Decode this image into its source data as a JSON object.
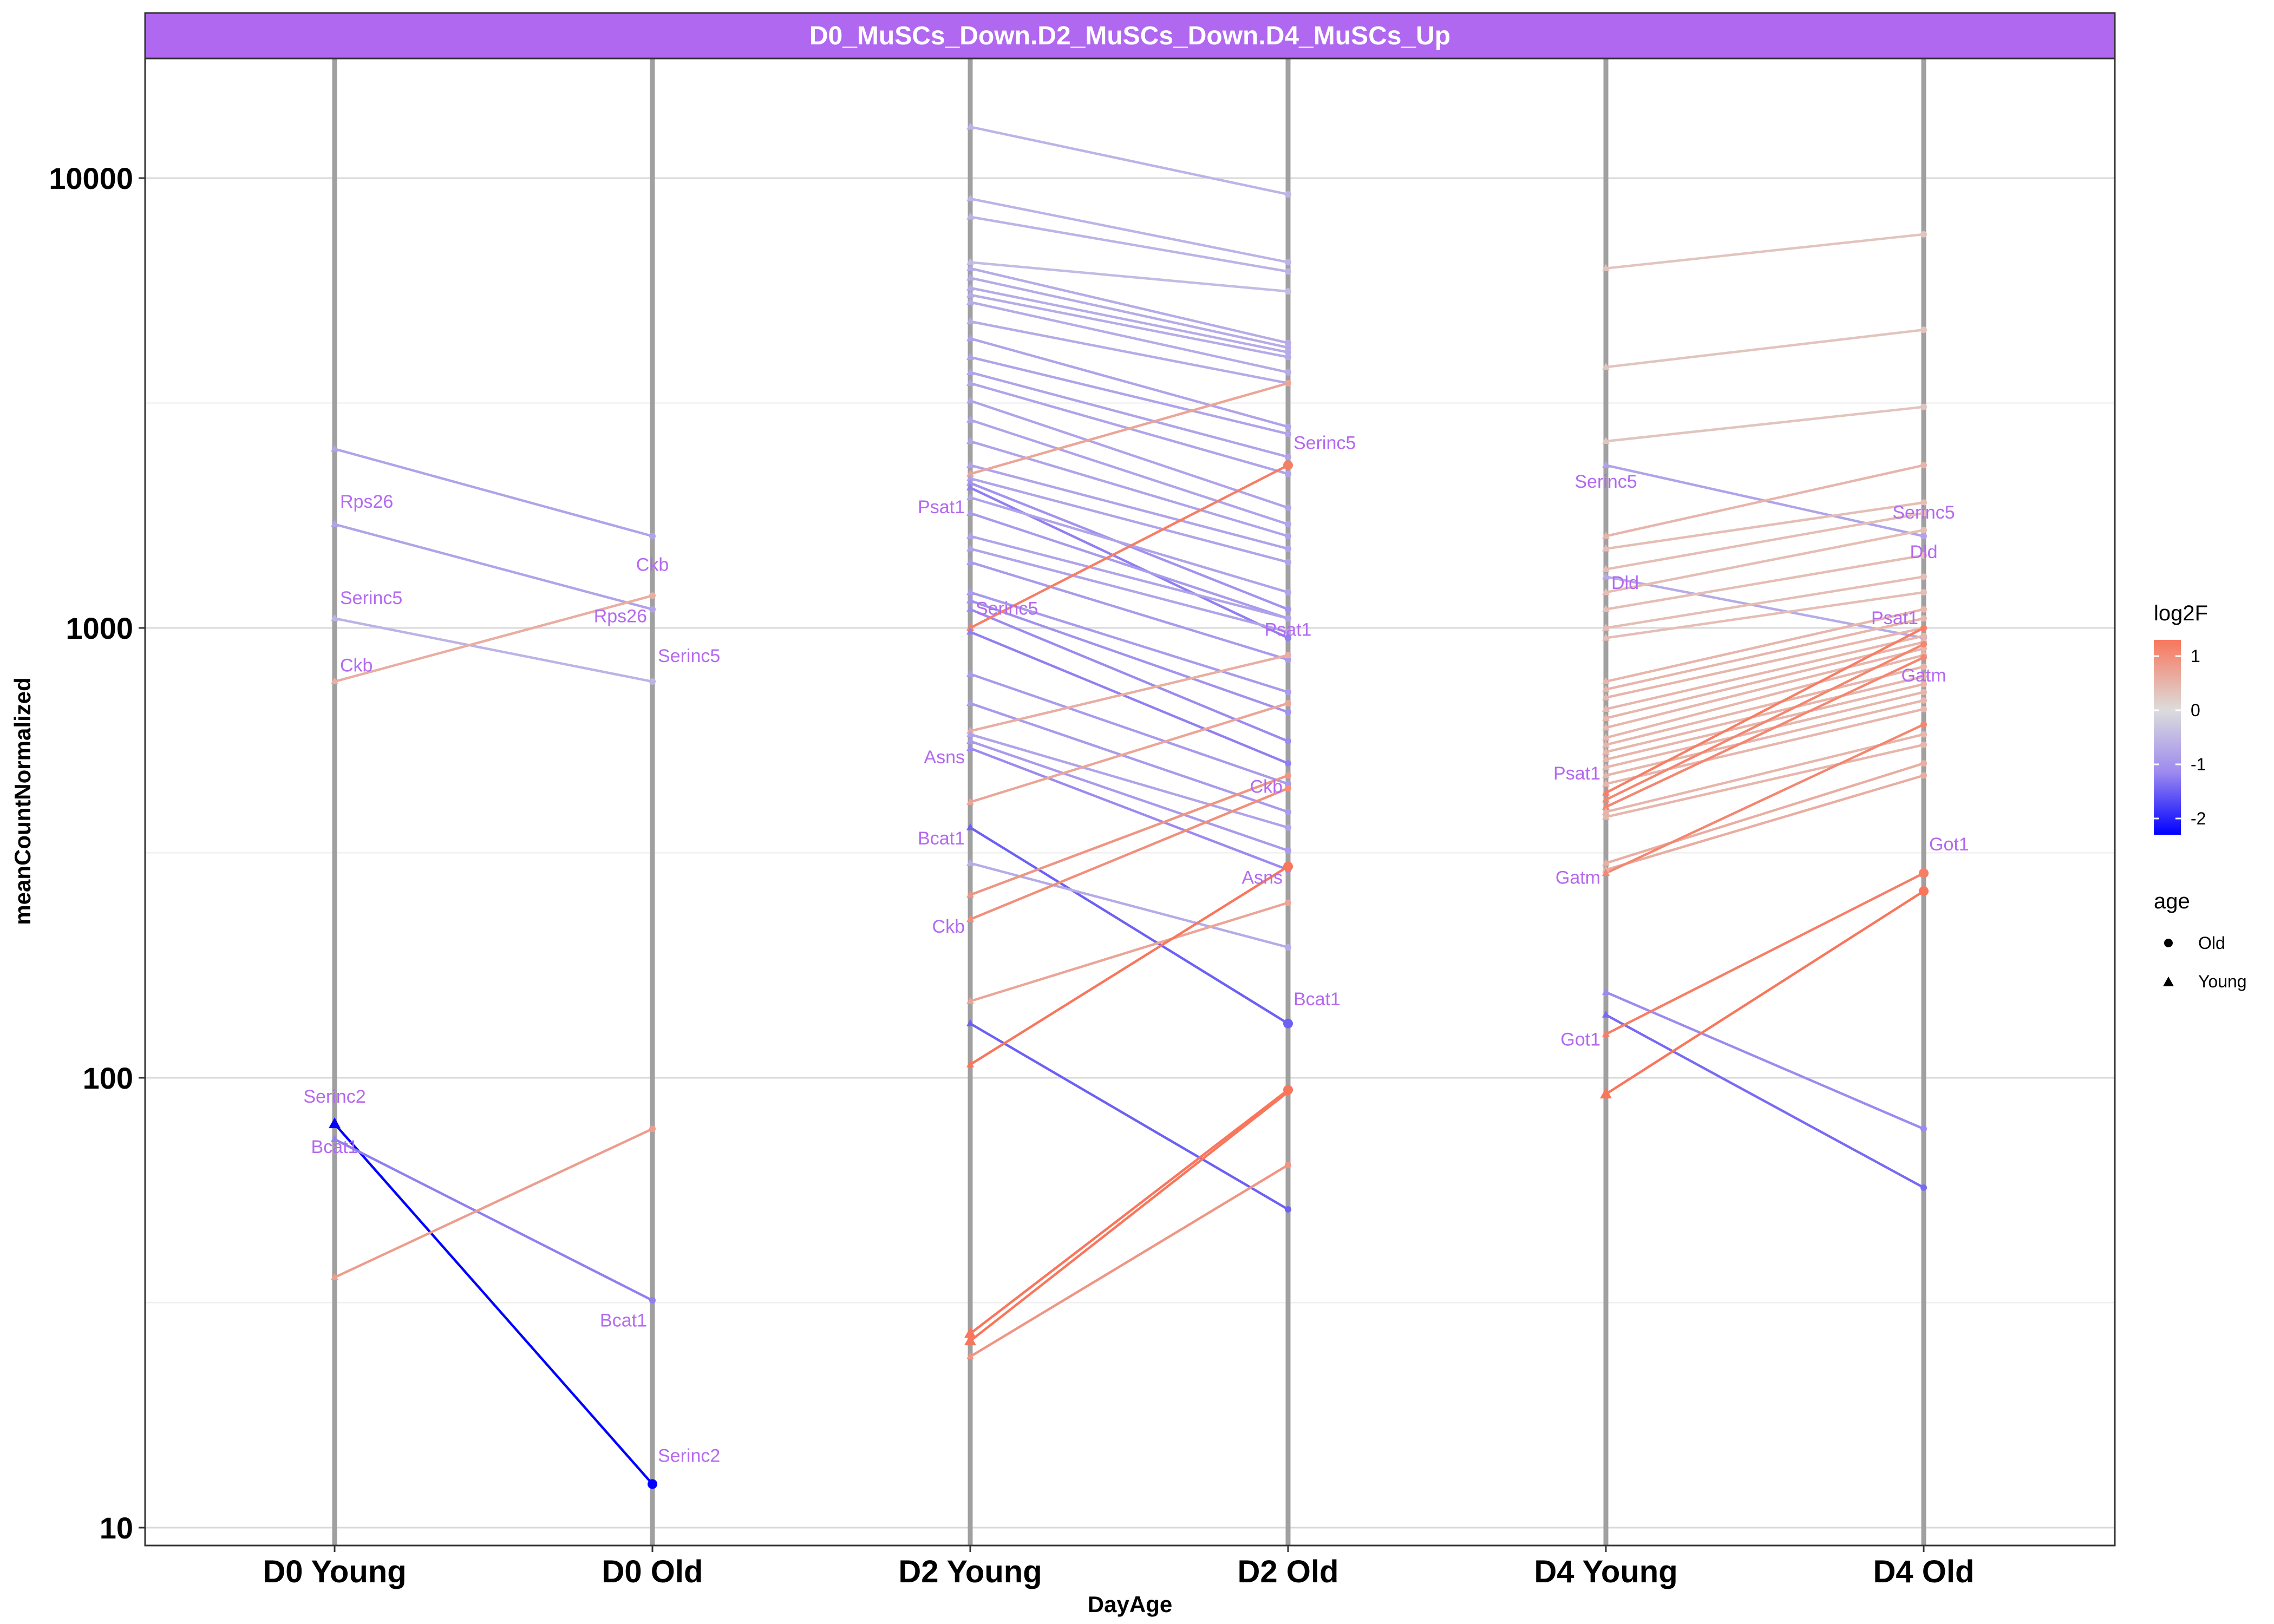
{
  "chart_data": {
    "type": "line",
    "title": "D0_MuSCs_Down.D2_MuSCs_Down.D4_MuSCs_Up",
    "xlabel": "DayAge",
    "ylabel": "meanCountNormalized",
    "y_scale": "log10",
    "ylim": [
      9,
      18000
    ],
    "y_ticks": [
      10,
      100,
      1000,
      10000
    ],
    "y_tick_labels": [
      "10",
      "100",
      "1000",
      "10000"
    ],
    "categories": [
      "D0 Young",
      "D0 Old",
      "D2 Young",
      "D2 Old",
      "D4 Young",
      "D4 Old"
    ],
    "grid": true,
    "legend_color": {
      "title": "log2F",
      "ticks": [
        1,
        0,
        -1,
        -2
      ],
      "tick_labels": [
        "1",
        "0",
        "-1",
        "-2"
      ],
      "range": [
        -2.3,
        1.3
      ],
      "colors": {
        "low": "#0000ff",
        "mid": "#dcdcdc",
        "high": "#f8765c"
      }
    },
    "legend_shape": {
      "title": "age",
      "entries": [
        {
          "label": "Old",
          "shape": "circle"
        },
        {
          "label": "Young",
          "shape": "triangle"
        }
      ]
    },
    "series": [
      {
        "from": "D0 Young",
        "to": "D0 Old",
        "y0": 2500,
        "y1": 1600,
        "l2f": -0.7
      },
      {
        "from": "D0 Young",
        "to": "D0 Old",
        "y0": 1700,
        "y1": 1100,
        "l2f": -0.7
      },
      {
        "from": "D0 Young",
        "to": "D0 Old",
        "y0": 1050,
        "y1": 760,
        "l2f": -0.5
      },
      {
        "from": "D0 Young",
        "to": "D0 Old",
        "y0": 760,
        "y1": 1180,
        "l2f": 0.6
      },
      {
        "from": "D0 Young",
        "to": "D0 Old",
        "y0": 79,
        "y1": 12.5,
        "l2f": -2.3
      },
      {
        "from": "D0 Young",
        "to": "D0 Old",
        "y0": 73,
        "y1": 32,
        "l2f": -1.1
      },
      {
        "from": "D0 Young",
        "to": "D0 Old",
        "y0": 36,
        "y1": 77,
        "l2f": 0.8
      },
      {
        "from": "D2 Young",
        "to": "D2 Old",
        "y0": 13000,
        "y1": 9200,
        "l2f": -0.5
      },
      {
        "from": "D2 Young",
        "to": "D2 Old",
        "y0": 9000,
        "y1": 6500,
        "l2f": -0.5
      },
      {
        "from": "D2 Young",
        "to": "D2 Old",
        "y0": 8200,
        "y1": 6200,
        "l2f": -0.5
      },
      {
        "from": "D2 Young",
        "to": "D2 Old",
        "y0": 6500,
        "y1": 5600,
        "l2f": -0.4
      },
      {
        "from": "D2 Young",
        "to": "D2 Old",
        "y0": 6300,
        "y1": 4300,
        "l2f": -0.6
      },
      {
        "from": "D2 Young",
        "to": "D2 Old",
        "y0": 6000,
        "y1": 4200,
        "l2f": -0.6
      },
      {
        "from": "D2 Young",
        "to": "D2 Old",
        "y0": 5700,
        "y1": 4100,
        "l2f": -0.6
      },
      {
        "from": "D2 Young",
        "to": "D2 Old",
        "y0": 5500,
        "y1": 4000,
        "l2f": -0.6
      },
      {
        "from": "D2 Young",
        "to": "D2 Old",
        "y0": 5300,
        "y1": 3700,
        "l2f": -0.6
      },
      {
        "from": "D2 Young",
        "to": "D2 Old",
        "y0": 4800,
        "y1": 3500,
        "l2f": -0.6
      },
      {
        "from": "D2 Young",
        "to": "D2 Old",
        "y0": 4400,
        "y1": 2800,
        "l2f": -0.7
      },
      {
        "from": "D2 Young",
        "to": "D2 Old",
        "y0": 4000,
        "y1": 2700,
        "l2f": -0.7
      },
      {
        "from": "D2 Young",
        "to": "D2 Old",
        "y0": 3700,
        "y1": 2400,
        "l2f": -0.7
      },
      {
        "from": "D2 Young",
        "to": "D2 Old",
        "y0": 3500,
        "y1": 2200,
        "l2f": -0.7
      },
      {
        "from": "D2 Young",
        "to": "D2 Old",
        "y0": 3200,
        "y1": 1850,
        "l2f": -0.7
      },
      {
        "from": "D2 Young",
        "to": "D2 Old",
        "y0": 2900,
        "y1": 1700,
        "l2f": -0.7
      },
      {
        "from": "D2 Young",
        "to": "D2 Old",
        "y0": 2600,
        "y1": 1600,
        "l2f": -0.7
      },
      {
        "from": "D2 Young",
        "to": "D2 Old",
        "y0": 2300,
        "y1": 1500,
        "l2f": -0.7
      },
      {
        "from": "D2 Young",
        "to": "D2 Old",
        "y0": 2200,
        "y1": 3500,
        "l2f": 0.7
      },
      {
        "from": "D2 Young",
        "to": "D2 Old",
        "y0": 2150,
        "y1": 1400,
        "l2f": -0.7
      },
      {
        "from": "D2 Young",
        "to": "D2 Old",
        "y0": 2100,
        "y1": 1100,
        "l2f": -0.9
      },
      {
        "from": "D2 Young",
        "to": "D2 Old",
        "y0": 2050,
        "y1": 950,
        "l2f": -1.1
      },
      {
        "from": "D2 Young",
        "to": "D2 Old",
        "y0": 1950,
        "y1": 1200,
        "l2f": -0.7
      },
      {
        "from": "D2 Young",
        "to": "D2 Old",
        "y0": 1800,
        "y1": 1050,
        "l2f": -0.8
      },
      {
        "from": "D2 Young",
        "to": "D2 Old",
        "y0": 1600,
        "y1": 1050,
        "l2f": -0.7
      },
      {
        "from": "D2 Young",
        "to": "D2 Old",
        "y0": 1500,
        "y1": 980,
        "l2f": -0.7
      },
      {
        "from": "D2 Young",
        "to": "D2 Old",
        "y0": 1400,
        "y1": 850,
        "l2f": -0.8
      },
      {
        "from": "D2 Young",
        "to": "D2 Old",
        "y0": 1200,
        "y1": 720,
        "l2f": -0.8
      },
      {
        "from": "D2 Young",
        "to": "D2 Old",
        "y0": 1150,
        "y1": 650,
        "l2f": -0.9
      },
      {
        "from": "D2 Young",
        "to": "D2 Old",
        "y0": 1100,
        "y1": 560,
        "l2f": -1.0
      },
      {
        "from": "D2 Young",
        "to": "D2 Old",
        "y0": 1000,
        "y1": 2300,
        "l2f": 1.2
      },
      {
        "from": "D2 Young",
        "to": "D2 Old",
        "y0": 980,
        "y1": 500,
        "l2f": -1.1
      },
      {
        "from": "D2 Young",
        "to": "D2 Old",
        "y0": 790,
        "y1": 450,
        "l2f": -0.8
      },
      {
        "from": "D2 Young",
        "to": "D2 Old",
        "y0": 680,
        "y1": 390,
        "l2f": -0.8
      },
      {
        "from": "D2 Young",
        "to": "D2 Old",
        "y0": 590,
        "y1": 870,
        "l2f": 0.6
      },
      {
        "from": "D2 Young",
        "to": "D2 Old",
        "y0": 580,
        "y1": 360,
        "l2f": -0.7
      },
      {
        "from": "D2 Young",
        "to": "D2 Old",
        "y0": 560,
        "y1": 320,
        "l2f": -0.8
      },
      {
        "from": "D2 Young",
        "to": "D2 Old",
        "y0": 540,
        "y1": 290,
        "l2f": -1.0
      },
      {
        "from": "D2 Young",
        "to": "D2 Old",
        "y0": 410,
        "y1": 680,
        "l2f": 0.7
      },
      {
        "from": "D2 Young",
        "to": "D2 Old",
        "y0": 360,
        "y1": 132,
        "l2f": -1.4
      },
      {
        "from": "D2 Young",
        "to": "D2 Old",
        "y0": 300,
        "y1": 195,
        "l2f": -0.6
      },
      {
        "from": "D2 Young",
        "to": "D2 Old",
        "y0": 255,
        "y1": 470,
        "l2f": 0.9
      },
      {
        "from": "D2 Young",
        "to": "D2 Old",
        "y0": 225,
        "y1": 440,
        "l2f": 1.0
      },
      {
        "from": "D2 Young",
        "to": "D2 Old",
        "y0": 148,
        "y1": 245,
        "l2f": 0.7
      },
      {
        "from": "D2 Young",
        "to": "D2 Old",
        "y0": 132,
        "y1": 51,
        "l2f": -1.4
      },
      {
        "from": "D2 Young",
        "to": "D2 Old",
        "y0": 107,
        "y1": 295,
        "l2f": 1.3
      },
      {
        "from": "D2 Young",
        "to": "D2 Old",
        "y0": 27,
        "y1": 94,
        "l2f": 1.3
      },
      {
        "from": "D2 Young",
        "to": "D2 Old",
        "y0": 26,
        "y1": 93,
        "l2f": 1.3
      },
      {
        "from": "D2 Young",
        "to": "D2 Old",
        "y0": 24,
        "y1": 64,
        "l2f": 0.9
      },
      {
        "from": "D4 Young",
        "to": "D4 Old",
        "y0": 6300,
        "y1": 7500,
        "l2f": 0.3
      },
      {
        "from": "D4 Young",
        "to": "D4 Old",
        "y0": 3800,
        "y1": 4600,
        "l2f": 0.3
      },
      {
        "from": "D4 Young",
        "to": "D4 Old",
        "y0": 2600,
        "y1": 3100,
        "l2f": 0.3
      },
      {
        "from": "D4 Young",
        "to": "D4 Old",
        "y0": 2300,
        "y1": 1600,
        "l2f": -0.7
      },
      {
        "from": "D4 Young",
        "to": "D4 Old",
        "y0": 1600,
        "y1": 2300,
        "l2f": 0.5
      },
      {
        "from": "D4 Young",
        "to": "D4 Old",
        "y0": 1500,
        "y1": 1900,
        "l2f": 0.4
      },
      {
        "from": "D4 Young",
        "to": "D4 Old",
        "y0": 1350,
        "y1": 1800,
        "l2f": 0.4
      },
      {
        "from": "D4 Young",
        "to": "D4 Old",
        "y0": 1300,
        "y1": 950,
        "l2f": -0.6
      },
      {
        "from": "D4 Young",
        "to": "D4 Old",
        "y0": 1200,
        "y1": 1650,
        "l2f": 0.4
      },
      {
        "from": "D4 Young",
        "to": "D4 Old",
        "y0": 1100,
        "y1": 1450,
        "l2f": 0.4
      },
      {
        "from": "D4 Young",
        "to": "D4 Old",
        "y0": 1000,
        "y1": 1300,
        "l2f": 0.4
      },
      {
        "from": "D4 Young",
        "to": "D4 Old",
        "y0": 950,
        "y1": 1200,
        "l2f": 0.4
      },
      {
        "from": "D4 Young",
        "to": "D4 Old",
        "y0": 760,
        "y1": 1100,
        "l2f": 0.5
      },
      {
        "from": "D4 Young",
        "to": "D4 Old",
        "y0": 730,
        "y1": 1050,
        "l2f": 0.5
      },
      {
        "from": "D4 Young",
        "to": "D4 Old",
        "y0": 700,
        "y1": 1000,
        "l2f": 0.5
      },
      {
        "from": "D4 Young",
        "to": "D4 Old",
        "y0": 660,
        "y1": 960,
        "l2f": 0.5
      },
      {
        "from": "D4 Young",
        "to": "D4 Old",
        "y0": 630,
        "y1": 930,
        "l2f": 0.5
      },
      {
        "from": "D4 Young",
        "to": "D4 Old",
        "y0": 600,
        "y1": 900,
        "l2f": 0.5
      },
      {
        "from": "D4 Young",
        "to": "D4 Old",
        "y0": 570,
        "y1": 870,
        "l2f": 0.5
      },
      {
        "from": "D4 Young",
        "to": "D4 Old",
        "y0": 550,
        "y1": 820,
        "l2f": 0.5
      },
      {
        "from": "D4 Young",
        "to": "D4 Old",
        "y0": 530,
        "y1": 780,
        "l2f": 0.5
      },
      {
        "from": "D4 Young",
        "to": "D4 Old",
        "y0": 510,
        "y1": 750,
        "l2f": 0.5
      },
      {
        "from": "D4 Young",
        "to": "D4 Old",
        "y0": 490,
        "y1": 720,
        "l2f": 0.5
      },
      {
        "from": "D4 Young",
        "to": "D4 Old",
        "y0": 470,
        "y1": 690,
        "l2f": 0.5
      },
      {
        "from": "D4 Young",
        "to": "D4 Old",
        "y0": 450,
        "y1": 660,
        "l2f": 0.5
      },
      {
        "from": "D4 Young",
        "to": "D4 Old",
        "y0": 430,
        "y1": 1000,
        "l2f": 1.2
      },
      {
        "from": "D4 Young",
        "to": "D4 Old",
        "y0": 415,
        "y1": 920,
        "l2f": 1.1
      },
      {
        "from": "D4 Young",
        "to": "D4 Old",
        "y0": 400,
        "y1": 860,
        "l2f": 1.1
      },
      {
        "from": "D4 Young",
        "to": "D4 Old",
        "y0": 390,
        "y1": 580,
        "l2f": 0.5
      },
      {
        "from": "D4 Young",
        "to": "D4 Old",
        "y0": 380,
        "y1": 550,
        "l2f": 0.5
      },
      {
        "from": "D4 Young",
        "to": "D4 Old",
        "y0": 300,
        "y1": 500,
        "l2f": 0.6
      },
      {
        "from": "D4 Young",
        "to": "D4 Old",
        "y0": 290,
        "y1": 470,
        "l2f": 0.6
      },
      {
        "from": "D4 Young",
        "to": "D4 Old",
        "y0": 285,
        "y1": 610,
        "l2f": 1.1
      },
      {
        "from": "D4 Young",
        "to": "D4 Old",
        "y0": 155,
        "y1": 77,
        "l2f": -1.0
      },
      {
        "from": "D4 Young",
        "to": "D4 Old",
        "y0": 138,
        "y1": 57,
        "l2f": -1.3
      },
      {
        "from": "D4 Young",
        "to": "D4 Old",
        "y0": 125,
        "y1": 285,
        "l2f": 1.2
      },
      {
        "from": "D4 Young",
        "to": "D4 Old",
        "y0": 92,
        "y1": 260,
        "l2f": 1.3
      }
    ],
    "points": [
      {
        "cat": "D0 Young",
        "y": 79,
        "age": "Young",
        "l2f": -2.3
      },
      {
        "cat": "D0 Old",
        "y": 12.5,
        "age": "Old",
        "l2f": -2.3
      },
      {
        "cat": "D2 Young",
        "y": 27,
        "age": "Young",
        "l2f": 1.3
      },
      {
        "cat": "D2 Young",
        "y": 26,
        "age": "Young",
        "l2f": 1.3
      },
      {
        "cat": "D2 Old",
        "y": 94,
        "age": "Old",
        "l2f": 1.3
      },
      {
        "cat": "D2 Old",
        "y": 2300,
        "age": "Old",
        "l2f": 1.2
      },
      {
        "cat": "D2 Old",
        "y": 295,
        "age": "Old",
        "l2f": 1.3
      },
      {
        "cat": "D2 Old",
        "y": 132,
        "age": "Old",
        "l2f": -1.4
      },
      {
        "cat": "D4 Young",
        "y": 92,
        "age": "Young",
        "l2f": 1.3
      },
      {
        "cat": "D4 Old",
        "y": 285,
        "age": "Old",
        "l2f": 1.2
      },
      {
        "cat": "D4 Old",
        "y": 260,
        "age": "Old",
        "l2f": 1.3
      }
    ],
    "labels": [
      {
        "text": "Rps26",
        "cat": "D0 Young",
        "y": 1850,
        "anchor": "start"
      },
      {
        "text": "Serinc5",
        "cat": "D0 Young",
        "y": 1130,
        "anchor": "start"
      },
      {
        "text": "Ckb",
        "cat": "D0 Young",
        "y": 800,
        "anchor": "start"
      },
      {
        "text": "Serinc2",
        "cat": "D0 Young",
        "y": 88,
        "anchor": "middle"
      },
      {
        "text": "Bcat1",
        "cat": "D0 Young",
        "y": 68,
        "anchor": "middle"
      },
      {
        "text": "Ckb",
        "cat": "D0 Old",
        "y": 1340,
        "anchor": "middle"
      },
      {
        "text": "Rps26",
        "cat": "D0 Old",
        "y": 1030,
        "anchor": "end"
      },
      {
        "text": "Serinc5",
        "cat": "D0 Old",
        "y": 840,
        "anchor": "start"
      },
      {
        "text": "Bcat1",
        "cat": "D0 Old",
        "y": 28,
        "anchor": "end"
      },
      {
        "text": "Serinc2",
        "cat": "D0 Old",
        "y": 14,
        "anchor": "start"
      },
      {
        "text": "Psat1",
        "cat": "D2 Young",
        "y": 1800,
        "anchor": "end"
      },
      {
        "text": "Serinc5",
        "cat": "D2 Young",
        "y": 1070,
        "anchor": "start"
      },
      {
        "text": "Asns",
        "cat": "D2 Young",
        "y": 500,
        "anchor": "end"
      },
      {
        "text": "Bcat1",
        "cat": "D2 Young",
        "y": 330,
        "anchor": "end"
      },
      {
        "text": "Ckb",
        "cat": "D2 Young",
        "y": 210,
        "anchor": "end"
      },
      {
        "text": "Serinc5",
        "cat": "D2 Old",
        "y": 2500,
        "anchor": "start"
      },
      {
        "text": "Psat1",
        "cat": "D2 Old",
        "y": 960,
        "anchor": "middle"
      },
      {
        "text": "Ckb",
        "cat": "D2 Old",
        "y": 430,
        "anchor": "end"
      },
      {
        "text": "Asns",
        "cat": "D2 Old",
        "y": 270,
        "anchor": "end"
      },
      {
        "text": "Bcat1",
        "cat": "D2 Old",
        "y": 145,
        "anchor": "start"
      },
      {
        "text": "Serinc5",
        "cat": "D4 Young",
        "y": 2050,
        "anchor": "middle"
      },
      {
        "text": "Dld",
        "cat": "D4 Young",
        "y": 1220,
        "anchor": "start"
      },
      {
        "text": "Psat1",
        "cat": "D4 Young",
        "y": 460,
        "anchor": "end"
      },
      {
        "text": "Gatm",
        "cat": "D4 Young",
        "y": 270,
        "anchor": "end"
      },
      {
        "text": "Got1",
        "cat": "D4 Young",
        "y": 118,
        "anchor": "end"
      },
      {
        "text": "Serinc5",
        "cat": "D4 Old",
        "y": 1750,
        "anchor": "middle"
      },
      {
        "text": "Dld",
        "cat": "D4 Old",
        "y": 1430,
        "anchor": "middle"
      },
      {
        "text": "Psat1",
        "cat": "D4 Old",
        "y": 1020,
        "anchor": "end"
      },
      {
        "text": "Gatm",
        "cat": "D4 Old",
        "y": 760,
        "anchor": "middle"
      },
      {
        "text": "Got1",
        "cat": "D4 Old",
        "y": 320,
        "anchor": "start"
      }
    ]
  }
}
